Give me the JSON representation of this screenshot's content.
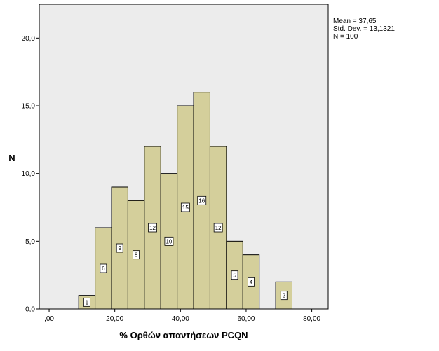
{
  "chart_data": {
    "type": "bar",
    "subtype": "histogram",
    "xlabel": "% Ορθών απαντήσεων PCQN",
    "ylabel": "N",
    "xlim": [
      -3,
      85
    ],
    "ylim": [
      0,
      22.5
    ],
    "bin_width": 5,
    "x_ticks": [
      {
        "value": 0,
        "label": ",00"
      },
      {
        "value": 20,
        "label": "20,00"
      },
      {
        "value": 40,
        "label": "40,00"
      },
      {
        "value": 60,
        "label": "60,00"
      },
      {
        "value": 80,
        "label": "80,00"
      }
    ],
    "y_ticks": [
      {
        "value": 0,
        "label": "0,0"
      },
      {
        "value": 5,
        "label": "5,0"
      },
      {
        "value": 10,
        "label": "10,0"
      },
      {
        "value": 15,
        "label": "15,0"
      },
      {
        "value": 20,
        "label": "20,0"
      }
    ],
    "bins": [
      {
        "start": 9,
        "end": 14,
        "count": 1,
        "label": "1"
      },
      {
        "start": 14,
        "end": 19,
        "count": 6,
        "label": "6"
      },
      {
        "start": 19,
        "end": 24,
        "count": 9,
        "label": "9"
      },
      {
        "start": 24,
        "end": 29,
        "count": 8,
        "label": "8"
      },
      {
        "start": 29,
        "end": 34,
        "count": 12,
        "label": "12"
      },
      {
        "start": 34,
        "end": 39,
        "count": 10,
        "label": "10"
      },
      {
        "start": 39,
        "end": 44,
        "count": 15,
        "label": "15"
      },
      {
        "start": 44,
        "end": 49,
        "count": 16,
        "label": "16"
      },
      {
        "start": 49,
        "end": 54,
        "count": 12,
        "label": "12"
      },
      {
        "start": 54,
        "end": 59,
        "count": 5,
        "label": "5"
      },
      {
        "start": 59,
        "end": 64,
        "count": 4,
        "label": "4"
      },
      {
        "start": 69,
        "end": 74,
        "count": 2,
        "label": "2"
      }
    ],
    "bar_color": "#d4cf9b",
    "plot_background": "#ececec",
    "grid": false,
    "legend": "none"
  },
  "stats": {
    "mean": "Mean = 37,65",
    "std_dev": "Std. Dev. = 13,1321",
    "n": "N = 100"
  }
}
